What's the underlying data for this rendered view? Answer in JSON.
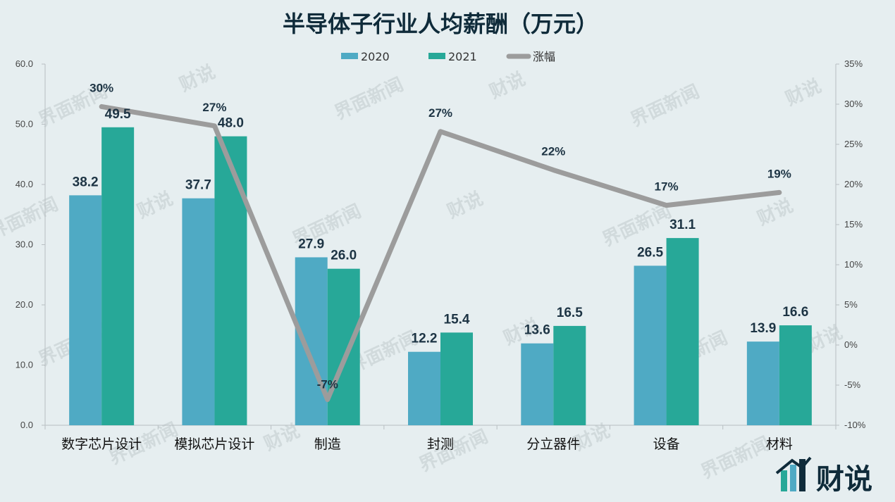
{
  "watermarks": [
    "界面新闻",
    "财说"
  ],
  "logo": {
    "text": "财说"
  },
  "chart_data": {
    "type": "bar",
    "title": "半导体子行业人均薪酬（万元）",
    "categories": [
      "数字芯片设计",
      "模拟芯片设计",
      "制造",
      "封测",
      "分立器件",
      "设备",
      "材料"
    ],
    "series": [
      {
        "name": "2020",
        "type": "bar",
        "axis": "left",
        "color": "#4faac4",
        "values": [
          38.2,
          37.7,
          27.9,
          12.2,
          13.6,
          26.5,
          13.9
        ],
        "labels": [
          "38.2",
          "37.7",
          "27.9",
          "12.2",
          "13.6",
          "26.5",
          "13.9"
        ]
      },
      {
        "name": "2021",
        "type": "bar",
        "axis": "left",
        "color": "#27a898",
        "values": [
          49.5,
          48.0,
          26.0,
          15.4,
          16.5,
          31.1,
          16.6
        ],
        "labels": [
          "49.5",
          "48.0",
          "26.0",
          "15.4",
          "16.5",
          "31.1",
          "16.6"
        ]
      },
      {
        "name": "涨幅",
        "type": "line",
        "axis": "right",
        "color": "#9c9c9c",
        "values": [
          0.297,
          0.273,
          -0.068,
          0.266,
          0.218,
          0.174,
          0.19
        ],
        "labels": [
          "30%",
          "27%",
          "-7%",
          "27%",
          "22%",
          "17%",
          "19%"
        ]
      }
    ],
    "y_left": {
      "min": 0,
      "max": 60,
      "step": 10,
      "ticks": [
        "0.0",
        "10.0",
        "20.0",
        "30.0",
        "40.0",
        "50.0",
        "60.0"
      ]
    },
    "y_right": {
      "min": -0.1,
      "max": 0.35,
      "step": 0.05,
      "ticks": [
        "-10%",
        "-5%",
        "0%",
        "5%",
        "10%",
        "15%",
        "20%",
        "25%",
        "30%",
        "35%"
      ]
    },
    "legend": {
      "position": "top-center",
      "entries": [
        "2020",
        "2021",
        "涨幅"
      ]
    },
    "grid": false
  }
}
